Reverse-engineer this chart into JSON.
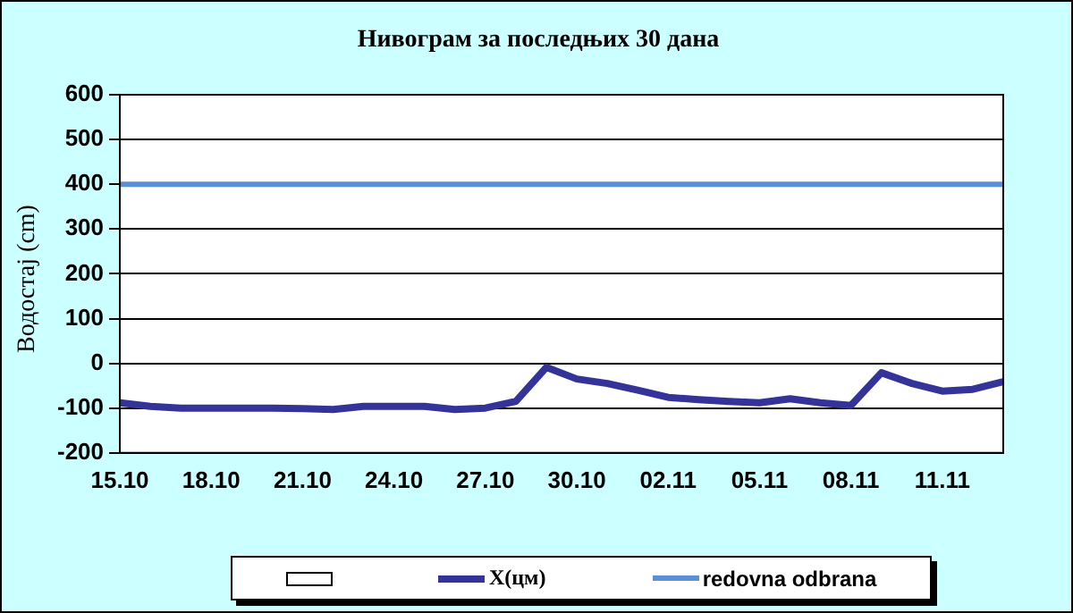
{
  "chart_data": {
    "type": "line",
    "title": "Нивограм за последњих 30 дана",
    "ylabel": "Водостај (cm)",
    "categories": [
      "15.10",
      null,
      null,
      "18.10",
      null,
      null,
      "21.10",
      null,
      null,
      "24.10",
      null,
      null,
      "27.10",
      null,
      null,
      "30.10",
      null,
      null,
      "02.11",
      null,
      null,
      "05.11",
      null,
      null,
      "08.11",
      null,
      null,
      "11.11",
      null,
      null
    ],
    "series": [
      {
        "name": "X(цм)",
        "color": "#333399",
        "values": [
          -88,
          -96,
          -100,
          -100,
          -100,
          -100,
          -101,
          -103,
          -96,
          -96,
          -96,
          -103,
          -100,
          -85,
          -9,
          -35,
          -45,
          -60,
          -76,
          -81,
          -85,
          -88,
          -79,
          -88,
          -94,
          -21,
          -45,
          -62,
          -58,
          -41
        ]
      }
    ],
    "ylim": [
      -200,
      600
    ],
    "yticks": [
      -200,
      -100,
      0,
      100,
      200,
      300,
      400,
      500,
      600
    ],
    "grid": "y",
    "legend": "bottom",
    "marker": "none",
    "line_style": "solid",
    "ref_lines": [
      {
        "axis": "y",
        "value": 400,
        "label": "redovna odbrana",
        "color": "#5b8fd8"
      }
    ]
  }
}
